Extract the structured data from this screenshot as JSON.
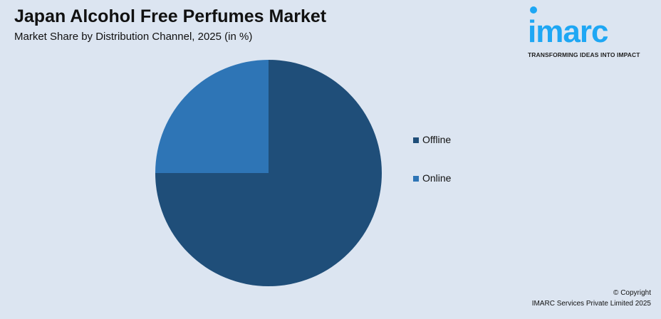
{
  "header": {
    "title": "Japan Alcohol Free Perfumes Market",
    "subtitle": "Market Share by Distribution Channel, 2025 (in %)"
  },
  "logo": {
    "text": "imarc",
    "tagline": "TRANSFORMING IDEAS INTO IMPACT",
    "color": "#1ea7f4"
  },
  "chart_data": {
    "type": "pie",
    "title": "Japan Alcohol Free Perfumes Market",
    "subtitle": "Market Share by Distribution Channel, 2025 (in %)",
    "categories": [
      "Offline",
      "Online"
    ],
    "values": [
      75,
      25
    ],
    "colors": [
      "#1f4e79",
      "#2e75b6"
    ],
    "legend_placement": "right"
  },
  "footer": {
    "copyright": "© Copyright",
    "company": "IMARC Services Private Limited 2025"
  }
}
